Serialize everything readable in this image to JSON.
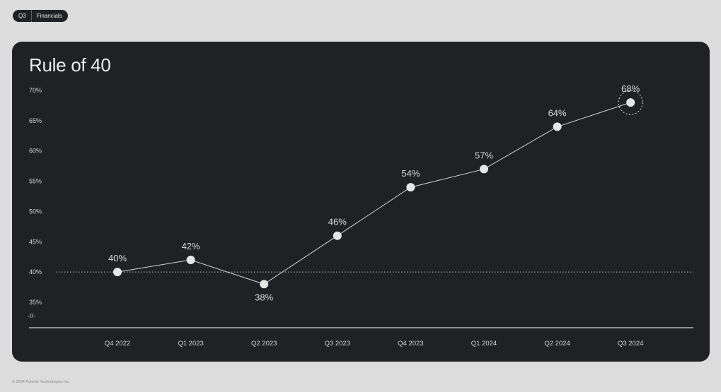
{
  "badge": {
    "section": "Q3",
    "label": "Financials"
  },
  "footer": "© 2024 Palantir Technologies Inc.",
  "chart_data": {
    "type": "line",
    "title": "Rule of 40",
    "xlabel": "",
    "ylabel": "",
    "categories": [
      "Q4 2022",
      "Q1 2023",
      "Q2 2023",
      "Q3 2023",
      "Q4 2023",
      "Q1 2024",
      "Q2 2024",
      "Q3 2024"
    ],
    "series": [
      {
        "values": [
          40,
          42,
          38,
          46,
          54,
          57,
          64,
          68
        ]
      }
    ],
    "data_labels": [
      "40%",
      "42%",
      "38%",
      "46%",
      "54%",
      "57%",
      "64%",
      "68%"
    ],
    "yticks": [
      35,
      40,
      45,
      50,
      55,
      60,
      65,
      70
    ],
    "ytick_labels": [
      "35%",
      "40%",
      "45%",
      "50%",
      "55%",
      "60%",
      "65%",
      "70%"
    ],
    "ylim": [
      35,
      70
    ],
    "axis_break_label": "-//-",
    "reference_line": 40,
    "highlight_last_point": true,
    "grid": false,
    "colors": {
      "line": "#d4d4d4",
      "marker": "#e6e6e6",
      "background": "#1f2124"
    }
  }
}
